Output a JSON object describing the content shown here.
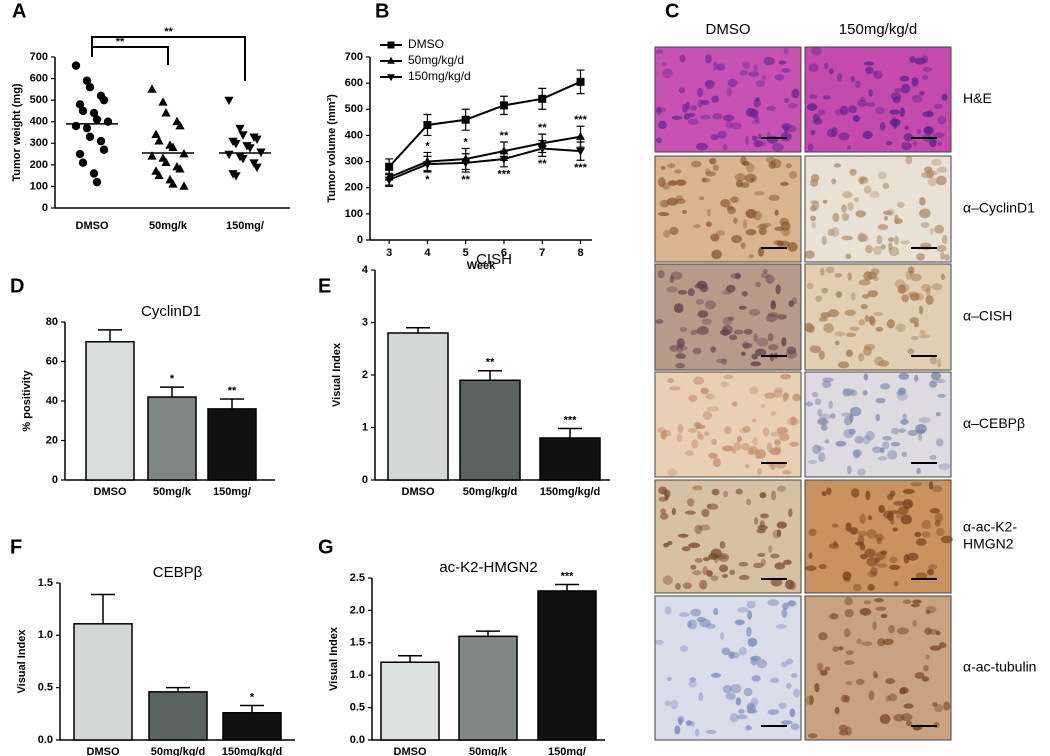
{
  "chart_data": [
    {
      "panel": "A",
      "type": "dotplot",
      "ylabel": "Tumor weight (mg)",
      "categories": [
        "DMSO",
        "50mg/k",
        "150mg/"
      ],
      "markers": [
        "circle",
        "triangle-up",
        "triangle-down"
      ],
      "color": "#000000",
      "values": [
        [
          660,
          590,
          560,
          520,
          500,
          480,
          450,
          440,
          410,
          400,
          380,
          370,
          330,
          310,
          270,
          250,
          210,
          160,
          120
        ],
        [
          550,
          490,
          440,
          400,
          380,
          340,
          310,
          290,
          280,
          250,
          240,
          230,
          210,
          190,
          180,
          170,
          150,
          130,
          110,
          100
        ],
        [
          500,
          370,
          340,
          330,
          320,
          310,
          300,
          290,
          280,
          260,
          250,
          240,
          230,
          210,
          190,
          160,
          150
        ]
      ],
      "means": [
        390,
        255,
        255
      ],
      "comparisons": [
        {
          "groups": [
            "DMSO",
            "50mg/k"
          ],
          "label": "**"
        },
        {
          "groups": [
            "DMSO",
            "150mg/"
          ],
          "label": "**"
        }
      ],
      "ylim": [
        0,
        700
      ],
      "yticks": [
        0,
        100,
        200,
        300,
        400,
        500,
        600,
        700
      ]
    },
    {
      "panel": "B",
      "type": "line",
      "xlabel": "Week",
      "ylabel": "Tumor volume (mm³)",
      "x": [
        3,
        4,
        5,
        6,
        7,
        8
      ],
      "xlim": [
        2.5,
        8.3
      ],
      "xticks": [
        3,
        4,
        5,
        6,
        7,
        8
      ],
      "ylim": [
        0,
        700
      ],
      "yticks": [
        0,
        100,
        200,
        300,
        400,
        500,
        600,
        700
      ],
      "legend": "top-left",
      "series": [
        {
          "name": "DMSO",
          "color": "#000000",
          "marker": "square",
          "values": [
            280,
            440,
            460,
            515,
            540,
            605
          ],
          "errors": [
            30,
            40,
            40,
            35,
            40,
            45
          ],
          "significance": [
            null,
            null,
            null,
            null,
            null,
            null
          ]
        },
        {
          "name": "50mg/kg/d",
          "color": "#000000",
          "marker": "triangle-up",
          "values": [
            240,
            300,
            310,
            340,
            370,
            395
          ],
          "errors": [
            30,
            35,
            40,
            35,
            35,
            40
          ],
          "significance": [
            null,
            "*",
            "*",
            "**",
            "**",
            "***"
          ]
        },
        {
          "name": "150mg/kg/d",
          "color": "#000000",
          "marker": "triangle-down",
          "values": [
            230,
            290,
            295,
            310,
            350,
            340
          ],
          "errors": [
            25,
            30,
            35,
            30,
            30,
            35
          ],
          "significance": [
            null,
            "*",
            "**",
            "***",
            "**",
            "***"
          ]
        }
      ]
    },
    {
      "panel": "C",
      "type": "image-grid",
      "columns": [
        "DMSO",
        "150mg/kg/d"
      ],
      "rows": [
        [
          "H&E"
        ],
        [
          "α–CyclinD1"
        ],
        [
          "α–CISH"
        ],
        [
          "α–CEBPβ"
        ],
        [
          "α-ac-K2-",
          "HMGN2"
        ],
        [
          "α-ac-tubulin"
        ]
      ]
    },
    {
      "panel": "D",
      "type": "bar",
      "title": "CyclinD1",
      "ylabel": "% positivity",
      "categories": [
        "DMSO",
        "50mg/k",
        "150mg/"
      ],
      "colors": [
        "#d9dddb",
        "#7f8684",
        "#111111"
      ],
      "values": [
        70,
        42,
        36
      ],
      "errors": [
        6,
        5,
        5
      ],
      "significance": [
        null,
        "*",
        "**"
      ],
      "ylim": [
        0,
        80
      ],
      "yticks": [
        0,
        20,
        40,
        60,
        80
      ]
    },
    {
      "panel": "E",
      "type": "bar",
      "title": "CISH",
      "ylabel": "Visual Index",
      "categories": [
        "DMSO",
        "50mg/kg/d",
        "150mg/kg/d"
      ],
      "colors": [
        "#d3d8d6",
        "#5b6361",
        "#111111"
      ],
      "values": [
        2.8,
        1.9,
        0.8
      ],
      "errors": [
        0.1,
        0.18,
        0.18
      ],
      "significance": [
        null,
        "**",
        "***"
      ],
      "ylim": [
        0,
        4
      ],
      "yticks": [
        0,
        1,
        2,
        3,
        4
      ]
    },
    {
      "panel": "F",
      "type": "bar",
      "title": "CEBPβ",
      "ylabel": "Visual Index",
      "categories": [
        "DMSO",
        "50mg/kg/d",
        "150mg/kg/d"
      ],
      "colors": [
        "#d3d8d6",
        "#5b6361",
        "#111111"
      ],
      "values": [
        1.11,
        0.46,
        0.26
      ],
      "errors": [
        0.28,
        0.04,
        0.07
      ],
      "significance": [
        null,
        null,
        "*"
      ],
      "ylim": [
        0,
        1.5
      ],
      "yticks": [
        {
          "value": 0,
          "label": "0.0"
        },
        0.5,
        {
          "value": 1,
          "label": "1.0"
        },
        1.5
      ]
    },
    {
      "panel": "G",
      "type": "bar",
      "title": "ac-K2-HMGN2",
      "ylabel": "Visual Index",
      "categories": [
        "DMSO",
        "50mg/k",
        "150mg/"
      ],
      "colors": [
        "#dde1df",
        "#7f8684",
        "#111111"
      ],
      "values": [
        1.2,
        1.6,
        2.3
      ],
      "errors": [
        0.1,
        0.08,
        0.1
      ],
      "significance": [
        null,
        null,
        "***"
      ],
      "ylim": [
        0,
        2.5
      ],
      "yticks": [
        {
          "value": 0,
          "label": "0.0"
        },
        0.5,
        {
          "value": 1,
          "label": "1.0"
        },
        1.5,
        {
          "value": 2,
          "label": "2.0"
        },
        2.5
      ]
    }
  ]
}
